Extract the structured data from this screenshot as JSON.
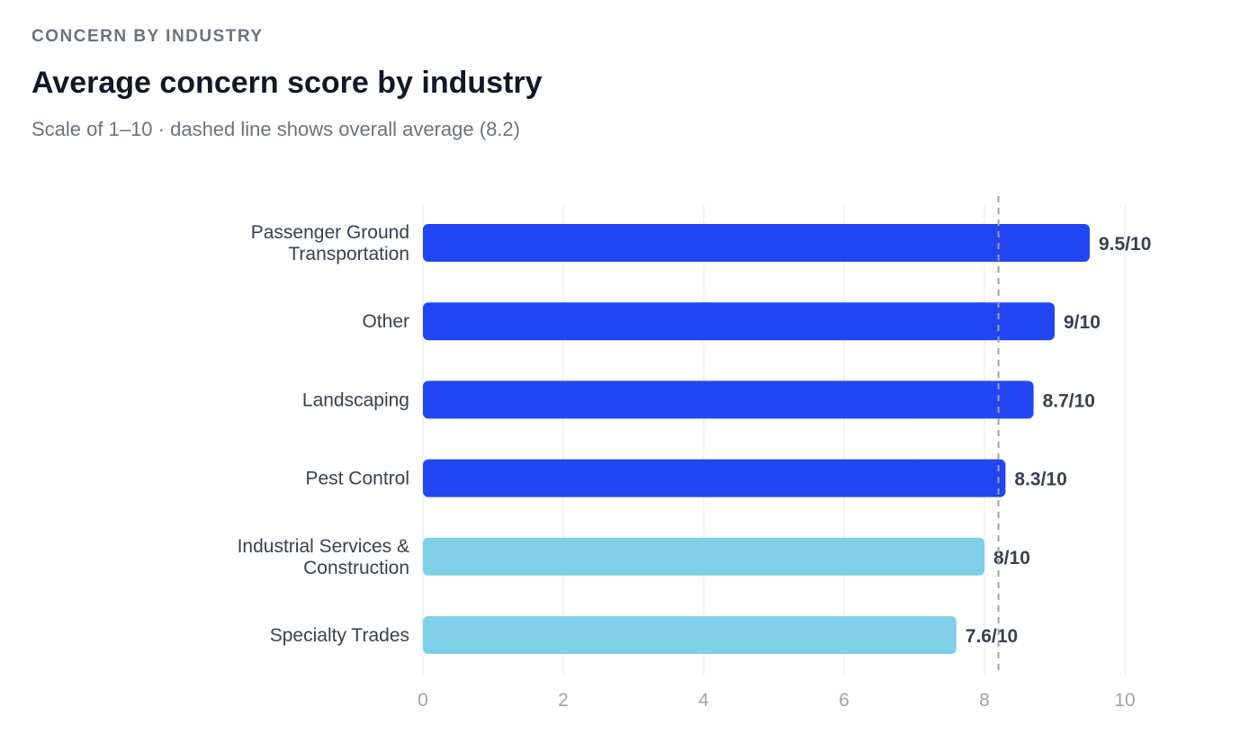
{
  "header": {
    "eyebrow": "CONCERN BY INDUSTRY",
    "title": "Average concern score by industry",
    "subtitle": "Scale of 1–10 · dashed line shows overall average (8.2)"
  },
  "chart_data": {
    "type": "bar",
    "orientation": "horizontal",
    "categories": [
      [
        "Passenger Ground",
        "Transportation"
      ],
      [
        "Other"
      ],
      [
        "Landscaping"
      ],
      [
        "Pest Control"
      ],
      [
        "Industrial Services &",
        "Construction"
      ],
      [
        "Specialty Trades"
      ]
    ],
    "values": [
      9.5,
      9,
      8.7,
      8.3,
      8,
      7.6
    ],
    "data_labels": [
      "9.5/10",
      "9/10",
      "8.7/10",
      "8.3/10",
      "8/10",
      "7.6/10"
    ],
    "bar_colors": [
      "#2146f2",
      "#2146f2",
      "#2146f2",
      "#2146f2",
      "#7ecfe7",
      "#7ecfe7"
    ],
    "xlim": [
      0,
      10
    ],
    "xticks": [
      0,
      2,
      4,
      6,
      8,
      10
    ],
    "reference_line": {
      "value": 8.2,
      "style": "dashed"
    },
    "grid": "vertical"
  }
}
